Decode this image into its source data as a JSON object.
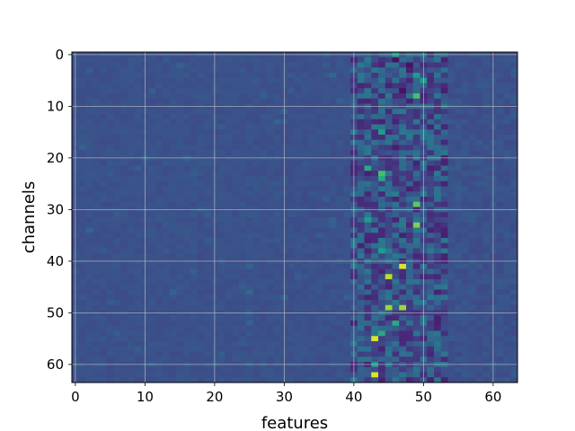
{
  "chart_data": {
    "type": "heatmap",
    "title": "",
    "xlabel": "features",
    "ylabel": "channels",
    "xlim": [
      0,
      63
    ],
    "ylim": [
      63,
      0
    ],
    "rows": 64,
    "cols": 64,
    "colormap": "viridis",
    "grid": true,
    "xticks": [
      0,
      10,
      20,
      30,
      40,
      50,
      60
    ],
    "yticks": [
      0,
      10,
      20,
      30,
      40,
      50,
      60
    ],
    "background_value": 0.25,
    "active_band_columns": [
      40,
      53
    ],
    "hot_cells": [
      {
        "row": 0,
        "col": 46,
        "value": 0.55
      },
      {
        "row": 1,
        "col": 46,
        "value": 0.05
      },
      {
        "row": 2,
        "col": 48,
        "value": 0.05
      },
      {
        "row": 4,
        "col": 49,
        "value": 0.55
      },
      {
        "row": 5,
        "col": 50,
        "value": 0.55
      },
      {
        "row": 7,
        "col": 47,
        "value": 0.05
      },
      {
        "row": 8,
        "col": 49,
        "value": 0.7
      },
      {
        "row": 15,
        "col": 44,
        "value": 0.55
      },
      {
        "row": 22,
        "col": 42,
        "value": 0.6
      },
      {
        "row": 23,
        "col": 44,
        "value": 0.7
      },
      {
        "row": 24,
        "col": 44,
        "value": 0.6
      },
      {
        "row": 29,
        "col": 49,
        "value": 0.75
      },
      {
        "row": 32,
        "col": 42,
        "value": 0.55
      },
      {
        "row": 33,
        "col": 49,
        "value": 0.8
      },
      {
        "row": 38,
        "col": 44,
        "value": 0.55
      },
      {
        "row": 41,
        "col": 47,
        "value": 0.95
      },
      {
        "row": 43,
        "col": 45,
        "value": 0.9
      },
      {
        "row": 49,
        "col": 45,
        "value": 0.85
      },
      {
        "row": 49,
        "col": 47,
        "value": 0.85
      },
      {
        "row": 52,
        "col": 46,
        "value": 0.6
      },
      {
        "row": 54,
        "col": 44,
        "value": 0.6
      },
      {
        "row": 55,
        "col": 43,
        "value": 0.95
      },
      {
        "row": 60,
        "col": 43,
        "value": 0.55
      },
      {
        "row": 62,
        "col": 43,
        "value": 0.95
      }
    ]
  }
}
